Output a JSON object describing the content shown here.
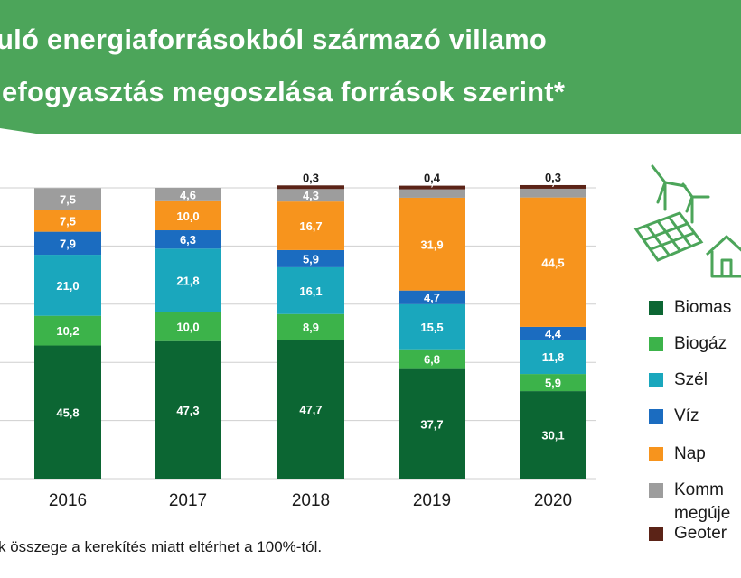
{
  "title": {
    "line1": "uló energiaforrásokból származó villamo",
    "line2": "efogyasztás megoszlása források szerint*"
  },
  "footnote": "k összege a kerekítés miatt eltérhet a 100%-tól.",
  "colors": {
    "banner": "#4ca55a",
    "grid": "#cfcfcf",
    "axis_text": "#1a1a1a",
    "icon": "#4ca55a"
  },
  "legend": [
    {
      "label": "Biomas",
      "color": "#0c6633"
    },
    {
      "label": "Biogáz",
      "color": "#3cb34a"
    },
    {
      "label": "Szél",
      "color": "#1aa7bd"
    },
    {
      "label": "Víz",
      "color": "#1b6cc0"
    },
    {
      "label": "Nap",
      "color": "#f7941d"
    },
    {
      "label": "Komm",
      "label2": "megúje",
      "color": "#9d9d9d"
    },
    {
      "label": "Geoter",
      "color": "#5b2317"
    }
  ],
  "icons": [
    "wind-turbine-icon",
    "solar-panel-icon",
    "house-icon"
  ],
  "chart_data": {
    "type": "bar",
    "stacked": true,
    "categories": [
      "2016",
      "2017",
      "2018",
      "2019",
      "2020"
    ],
    "ylim": [
      0,
      100
    ],
    "grid": true,
    "legend_position": "right",
    "series": [
      {
        "name": "Biomas",
        "color": "#0c6633",
        "label_color": "#ffffff",
        "values": [
          45.8,
          47.3,
          47.7,
          37.7,
          30.1
        ],
        "labels": [
          "45,8",
          "47,3",
          "47,7",
          "37,7",
          "30,1"
        ]
      },
      {
        "name": "Biogáz",
        "color": "#3cb34a",
        "label_color": "#ffffff",
        "values": [
          10.2,
          10.0,
          8.9,
          6.8,
          5.9
        ],
        "labels": [
          "10,2",
          "10,0",
          "8,9",
          "6,8",
          "5,9"
        ]
      },
      {
        "name": "Szél",
        "color": "#1aa7bd",
        "label_color": "#ffffff",
        "values": [
          21.0,
          21.8,
          16.1,
          15.5,
          11.8
        ],
        "labels": [
          "21,0",
          "21,8",
          "16,1",
          "15,5",
          "11,8"
        ]
      },
      {
        "name": "Víz",
        "color": "#1b6cc0",
        "label_color": "#ffffff",
        "values": [
          7.9,
          6.3,
          5.9,
          4.7,
          4.4
        ],
        "labels": [
          "7,9",
          "6,3",
          "5,9",
          "4,7",
          "4,4"
        ]
      },
      {
        "name": "Nap",
        "color": "#f7941d",
        "label_color": "#ffffff",
        "values": [
          7.5,
          10.0,
          16.7,
          31.9,
          44.5
        ],
        "labels": [
          "7,5",
          "10,0",
          "16,7",
          "31,9",
          "44,5"
        ]
      },
      {
        "name": "Komm",
        "color": "#9d9d9d",
        "label_color": "#ffffff",
        "values": [
          7.5,
          4.6,
          4.3,
          2.9,
          3.0
        ],
        "labels": [
          "7,5",
          "4,6",
          "4,3",
          "2,9",
          "3,0"
        ]
      },
      {
        "name": "Geoter",
        "color": "#5b2317",
        "label_color": "#1a1a1a",
        "values": [
          0,
          0,
          0.3,
          0.4,
          0.3
        ],
        "labels": [
          "",
          "",
          "0,3",
          "0,4",
          "0,3"
        ]
      }
    ]
  }
}
